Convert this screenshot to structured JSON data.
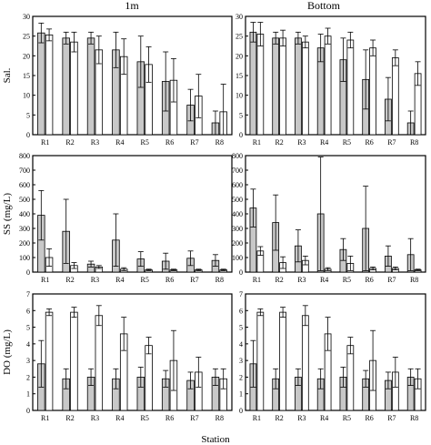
{
  "figure": {
    "column_titles": [
      "1m",
      "Bottom"
    ],
    "xlabel": "Station"
  },
  "colors": {
    "bar_1": "#c8c8c8",
    "bar_2": "#ffffff",
    "stroke": "#000000"
  },
  "chart_data": [
    {
      "type": "bar",
      "title": "1m",
      "ylabel": "Sal.",
      "ylim": [
        0,
        30
      ],
      "yticks": [
        "0",
        "5",
        "10",
        "15",
        "20",
        "25",
        "30"
      ],
      "categories": [
        "R1",
        "R2",
        "R3",
        "R4",
        "R5",
        "R6",
        "R7",
        "R8"
      ],
      "series": [
        {
          "values": [
            25.8,
            24.5,
            24.5,
            21.5,
            18.5,
            13.5,
            7.5,
            3.0
          ],
          "errors": [
            2.5,
            1.5,
            1.5,
            4.5,
            6.5,
            7.5,
            4.0,
            3.0
          ]
        },
        {
          "values": [
            25.3,
            23.5,
            21.5,
            19.8,
            17.8,
            13.8,
            9.8,
            5.8
          ],
          "errors": [
            1.5,
            2.5,
            3.5,
            4.5,
            4.5,
            5.5,
            5.5,
            7.0
          ]
        }
      ],
      "grid": false
    },
    {
      "type": "bar",
      "title": "Bottom",
      "ylabel": "",
      "ylim": [
        0,
        30
      ],
      "yticks": [
        "0",
        "5",
        "10",
        "15",
        "20",
        "25",
        "30"
      ],
      "categories": [
        "R1",
        "R2",
        "R3",
        "R4",
        "R5",
        "R6",
        "R7",
        "R8"
      ],
      "series": [
        {
          "values": [
            26.0,
            24.5,
            24.5,
            22.0,
            19.0,
            14.0,
            9.0,
            3.0
          ],
          "errors": [
            2.5,
            1.5,
            1.5,
            3.5,
            5.5,
            7.5,
            5.5,
            3.0
          ]
        },
        {
          "values": [
            25.5,
            24.5,
            23.5,
            25.0,
            24.0,
            22.0,
            19.5,
            15.5
          ],
          "errors": [
            3.0,
            2.0,
            1.5,
            2.0,
            2.0,
            2.0,
            2.0,
            3.0
          ]
        }
      ],
      "grid": false
    },
    {
      "type": "bar",
      "title": "",
      "ylabel": "SS (mg/L)",
      "ylim": [
        0,
        800
      ],
      "yticks": [
        "0",
        "100",
        "200",
        "300",
        "400",
        "500",
        "600",
        "700",
        "800"
      ],
      "categories": [
        "R1",
        "R2",
        "R3",
        "R4",
        "R5",
        "R6",
        "R7",
        "R8"
      ],
      "series": [
        {
          "values": [
            390,
            280,
            55,
            220,
            90,
            75,
            95,
            80
          ],
          "errors": [
            170,
            220,
            20,
            180,
            50,
            55,
            50,
            40
          ]
        },
        {
          "values": [
            100,
            45,
            35,
            20,
            15,
            15,
            15,
            15
          ],
          "errors": [
            60,
            20,
            10,
            10,
            5,
            5,
            5,
            5
          ]
        }
      ],
      "grid": false
    },
    {
      "type": "bar",
      "title": "",
      "ylabel": "",
      "ylim": [
        0,
        800
      ],
      "yticks": [
        "0",
        "100",
        "200",
        "300",
        "400",
        "500",
        "600",
        "700",
        "800"
      ],
      "categories": [
        "R1",
        "R2",
        "R3",
        "R4",
        "R5",
        "R6",
        "R7",
        "R8"
      ],
      "series": [
        {
          "values": [
            440,
            340,
            180,
            400,
            155,
            300,
            110,
            120
          ],
          "errors": [
            130,
            190,
            110,
            390,
            75,
            290,
            70,
            110
          ]
        },
        {
          "values": [
            145,
            65,
            80,
            20,
            60,
            25,
            25,
            15
          ],
          "errors": [
            30,
            40,
            30,
            10,
            50,
            10,
            10,
            5
          ]
        }
      ],
      "grid": false
    },
    {
      "type": "bar",
      "title": "",
      "ylabel": "DO (mg/L)",
      "ylim": [
        0,
        7
      ],
      "yticks": [
        "0",
        "1",
        "2",
        "3",
        "4",
        "5",
        "6",
        "7"
      ],
      "categories": [
        "R1",
        "R2",
        "R3",
        "R4",
        "R5",
        "R6",
        "R7",
        "R8"
      ],
      "series": [
        {
          "values": [
            2.8,
            1.9,
            2.0,
            1.9,
            2.0,
            1.9,
            1.8,
            2.0
          ],
          "errors": [
            1.4,
            0.6,
            0.5,
            0.6,
            0.6,
            0.5,
            0.5,
            0.5
          ]
        },
        {
          "values": [
            5.9,
            5.9,
            5.7,
            4.6,
            3.9,
            3.0,
            2.3,
            1.9
          ],
          "errors": [
            0.2,
            0.3,
            0.6,
            1.0,
            0.5,
            1.8,
            0.9,
            0.6
          ]
        }
      ],
      "grid": false
    },
    {
      "type": "bar",
      "title": "",
      "ylabel": "",
      "ylim": [
        0,
        7
      ],
      "yticks": [
        "0",
        "1",
        "2",
        "3",
        "4",
        "5",
        "6",
        "7"
      ],
      "categories": [
        "R1",
        "R2",
        "R3",
        "R4",
        "R5",
        "R6",
        "R7",
        "R8"
      ],
      "series": [
        {
          "values": [
            2.8,
            1.9,
            2.0,
            1.9,
            2.0,
            1.9,
            1.8,
            2.0
          ],
          "errors": [
            1.4,
            0.6,
            0.5,
            0.6,
            0.6,
            0.5,
            0.5,
            0.5
          ]
        },
        {
          "values": [
            5.9,
            5.9,
            5.7,
            4.6,
            3.9,
            3.0,
            2.3,
            1.9
          ],
          "errors": [
            0.2,
            0.3,
            0.6,
            1.0,
            0.5,
            1.8,
            0.9,
            0.6
          ]
        }
      ],
      "grid": false
    }
  ]
}
